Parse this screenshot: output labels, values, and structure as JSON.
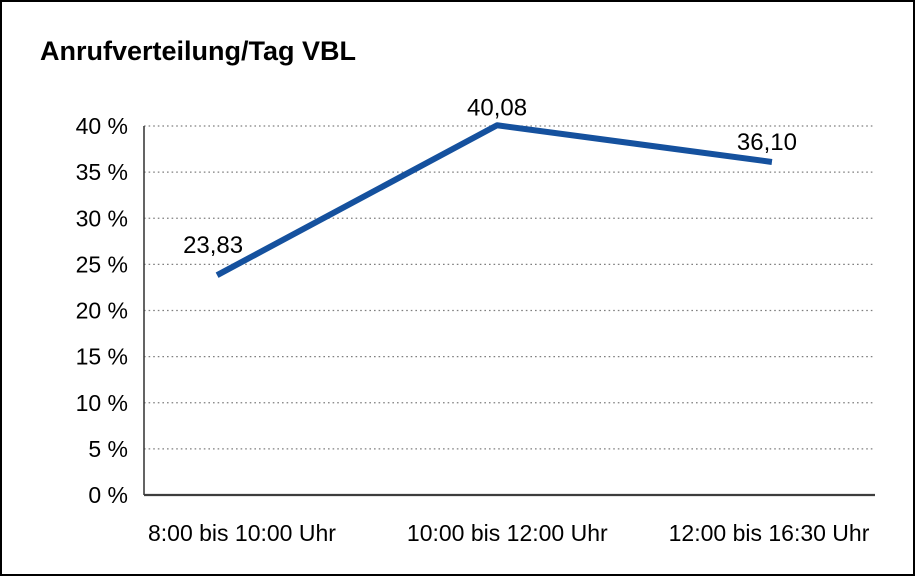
{
  "chart_data": {
    "type": "line",
    "title": "Anrufverteilung/Tag VBL",
    "categories": [
      "8:00 bis 10:00 Uhr",
      "10:00 bis 12:00 Uhr",
      "12:00 bis 16:30 Uhr"
    ],
    "values": [
      23.83,
      40.08,
      36.1
    ],
    "value_labels": [
      "23,83",
      "40,08",
      "36,10"
    ],
    "y_ticks": [
      "0 %",
      "5 %",
      "10 %",
      "15 %",
      "20 %",
      "25 %",
      "30 %",
      "35 %",
      "40 %"
    ],
    "y_tick_values": [
      0,
      5,
      10,
      15,
      20,
      25,
      30,
      35,
      40
    ],
    "ylim": [
      0,
      40
    ],
    "xlabel": "",
    "ylabel": "",
    "legend": "none",
    "grid": "horizontal-dotted",
    "colors": {
      "line": "#15519E",
      "gridline": "#7f7f7f",
      "axis": "#3d3d3d",
      "text": "#000000",
      "border": "#000000",
      "background": "#ffffff"
    }
  }
}
